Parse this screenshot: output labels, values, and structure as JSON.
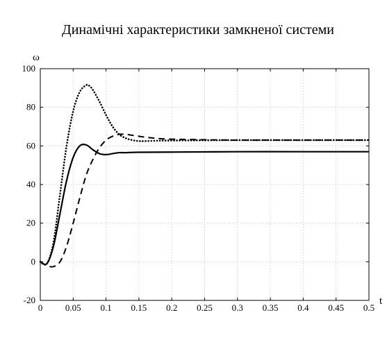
{
  "chart_data": {
    "type": "line",
    "title": "Динамічні характеристики замкненої системи",
    "xlabel": "t",
    "ylabel": "ω",
    "xlim": [
      0,
      0.5
    ],
    "ylim": [
      -20,
      100
    ],
    "grid": true,
    "xticks": [
      0,
      0.05,
      0.1,
      0.15,
      0.2,
      0.25,
      0.3,
      0.35,
      0.4,
      0.45,
      0.5
    ],
    "xtick_labels": [
      "0",
      "0.05",
      "0.1",
      "0.15",
      "0.2",
      "0.25",
      "0.3",
      "0.35",
      "0.4",
      "0.45",
      "0.5"
    ],
    "yticks": [
      -20,
      0,
      20,
      40,
      60,
      80,
      100
    ],
    "ytick_labels": [
      "-20",
      "0",
      "20",
      "40",
      "60",
      "80",
      "100"
    ],
    "series": [
      {
        "style": "solid",
        "x": [
          0,
          0.01,
          0.02,
          0.03,
          0.04,
          0.05,
          0.06,
          0.07,
          0.08,
          0.09,
          0.1,
          0.11,
          0.12,
          0.13,
          0.15,
          0.2,
          0.3,
          0.4,
          0.5
        ],
        "values": [
          0,
          -1,
          8,
          25,
          42,
          54,
          60,
          60.5,
          58,
          56,
          55.5,
          56,
          56.5,
          56.5,
          56.7,
          56.8,
          57,
          57,
          57
        ]
      },
      {
        "style": "dashed",
        "x": [
          0,
          0.01,
          0.02,
          0.03,
          0.04,
          0.05,
          0.06,
          0.07,
          0.08,
          0.09,
          0.1,
          0.11,
          0.12,
          0.13,
          0.14,
          0.16,
          0.18,
          0.2,
          0.25,
          0.3,
          0.4,
          0.5
        ],
        "values": [
          0,
          -2,
          -2.5,
          0,
          8,
          20,
          33,
          45,
          53,
          59,
          63,
          65,
          66,
          66,
          65.5,
          64.5,
          63.8,
          63.5,
          63.2,
          63,
          63,
          63
        ]
      },
      {
        "style": "dotted",
        "x": [
          0,
          0.01,
          0.02,
          0.03,
          0.04,
          0.05,
          0.06,
          0.07,
          0.075,
          0.08,
          0.09,
          0.1,
          0.11,
          0.12,
          0.13,
          0.14,
          0.15,
          0.16,
          0.18,
          0.2,
          0.3,
          0.4,
          0.5
        ],
        "values": [
          0,
          -1,
          10,
          35,
          60,
          78,
          88,
          91.5,
          91,
          89,
          83,
          76,
          70,
          66,
          64,
          63,
          62.5,
          62.5,
          62.7,
          62.8,
          63,
          63,
          63
        ]
      }
    ]
  }
}
